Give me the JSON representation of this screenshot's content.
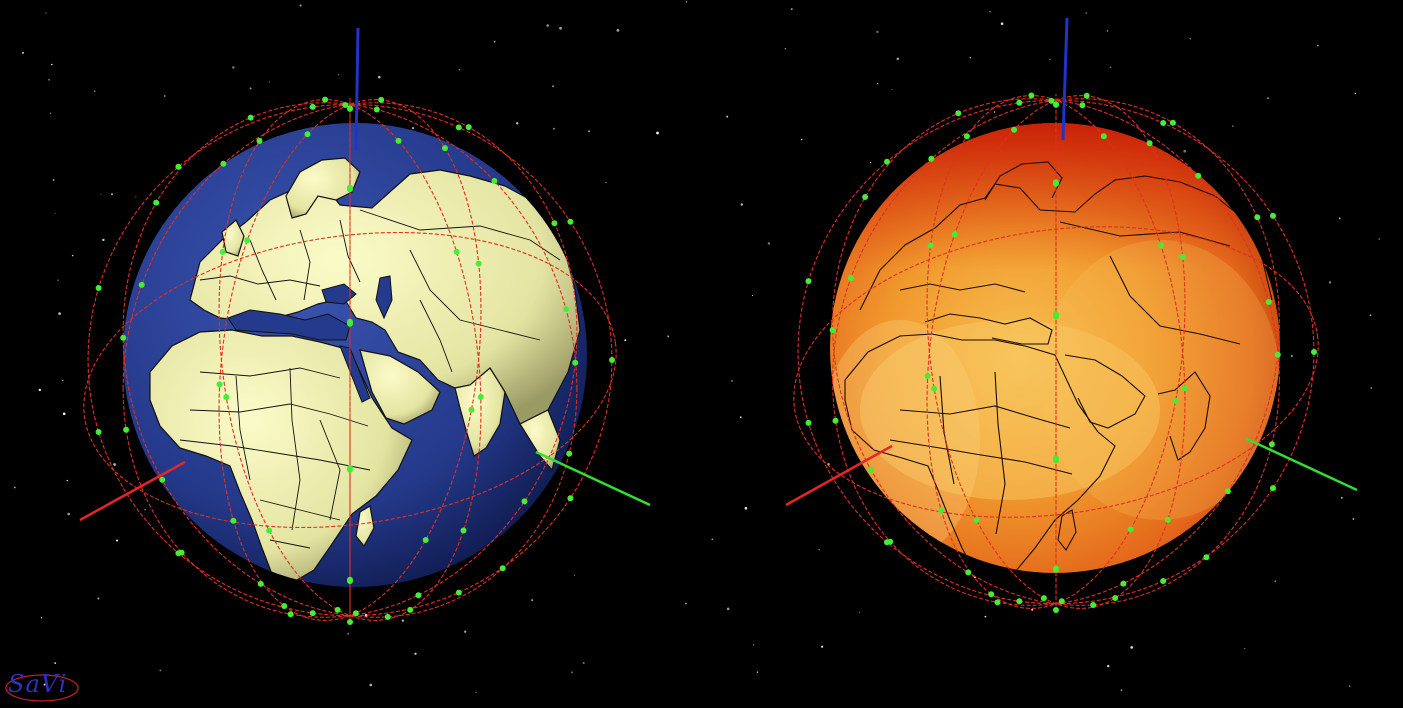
{
  "logo": {
    "text": "SaVi",
    "color": "#3030c0",
    "ring_color": "#c02020"
  },
  "colors": {
    "space": "#000000",
    "ocean": "#243a8c",
    "land": "#e7e7a6",
    "border": "#111111",
    "orbit": "#e03020",
    "satellite": "#44ee33",
    "axis_x": "#e62626",
    "axis_y": "#33dd33",
    "axis_z": "#2233cc",
    "coverage_high": "#cf1d0a",
    "coverage_mid": "#ef6a12",
    "coverage_low": "#f3b640"
  },
  "views": [
    {
      "name": "earth-globe-view",
      "mode": "map"
    },
    {
      "name": "coverage-globe-view",
      "mode": "coverage"
    }
  ]
}
